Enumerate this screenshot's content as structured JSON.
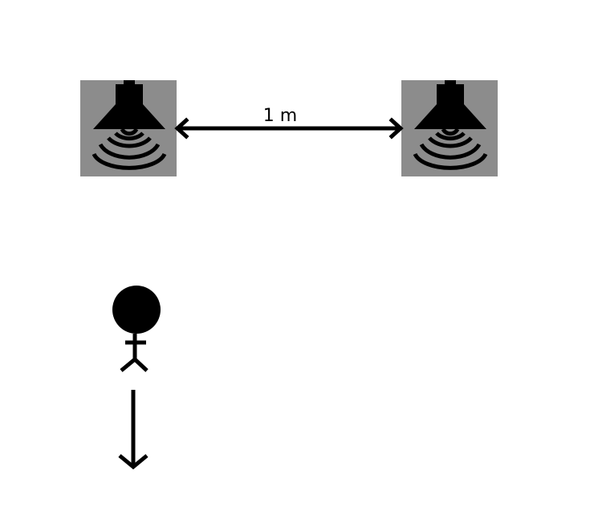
{
  "diagram": {
    "distance_label": "1 m",
    "colors": {
      "speaker_background": "#8c8c8c",
      "ink": "#000000",
      "page_background": "#ffffff"
    },
    "icons": {
      "speaker": "loudspeaker-icon",
      "person": "person-icon",
      "movement": "arrow-down-icon",
      "distance": "double-headed-arrow-icon"
    }
  }
}
